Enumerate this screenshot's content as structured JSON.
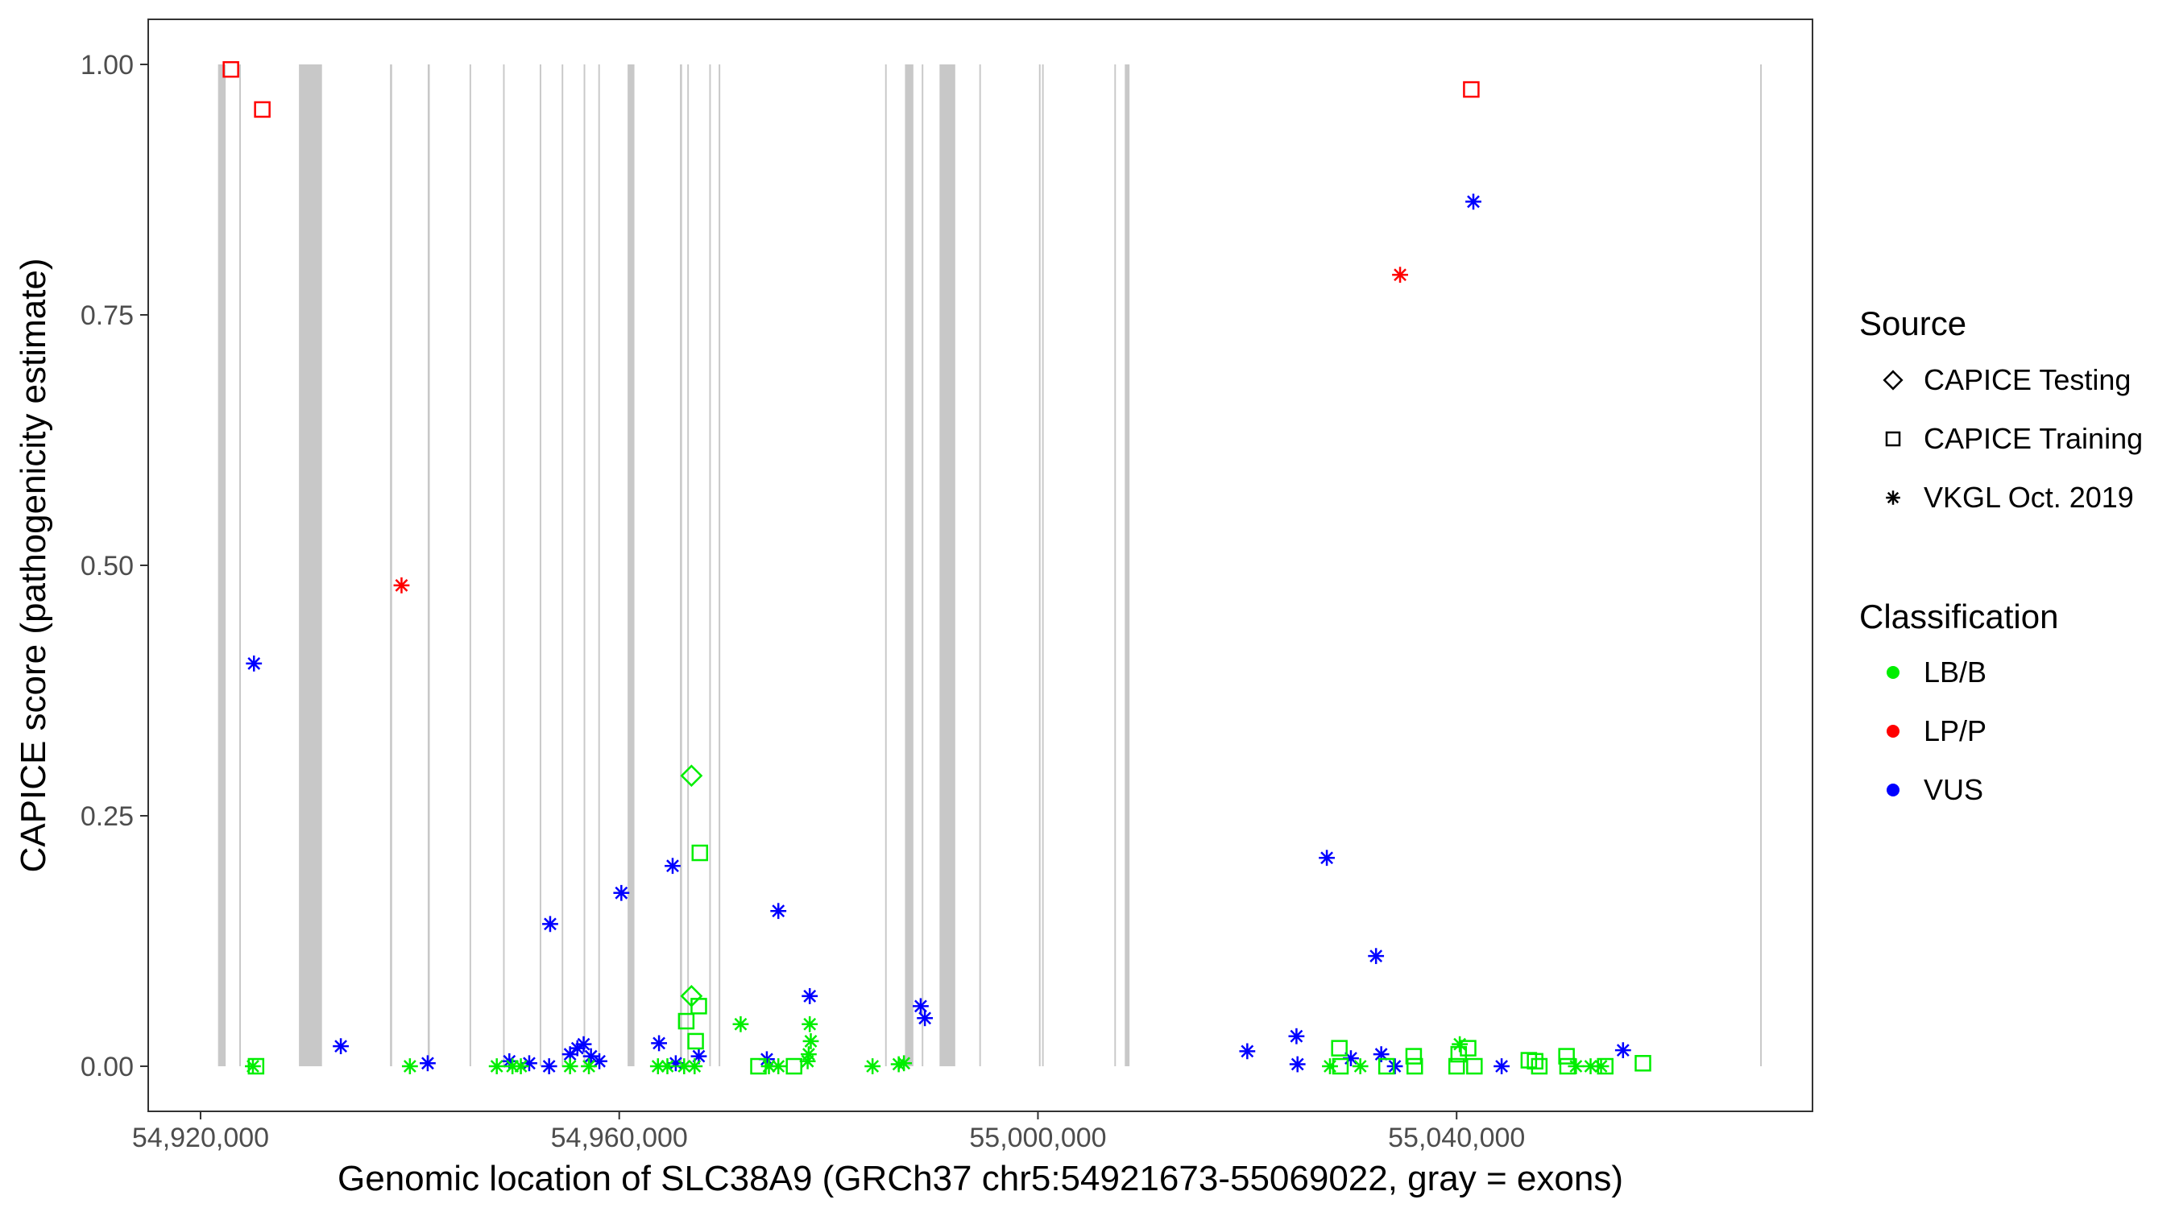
{
  "chart_data": {
    "type": "scatter",
    "xlabel": "Genomic location of SLC38A9 (GRCh37 chr5:54921673-55069022, gray = exons)",
    "ylabel": "CAPICE score (pathogenicity estimate)",
    "xlim": [
      54915000,
      55074000
    ],
    "ylim": [
      -0.045,
      1.045
    ],
    "x_ticks": [
      {
        "value": 54920000,
        "label": "54,920,000"
      },
      {
        "value": 54960000,
        "label": "54,960,000"
      },
      {
        "value": 55000000,
        "label": "55,000,000"
      },
      {
        "value": 55040000,
        "label": "55,040,000"
      }
    ],
    "y_ticks": [
      {
        "value": 0.0,
        "label": "0.00"
      },
      {
        "value": 0.25,
        "label": "0.25"
      },
      {
        "value": 0.5,
        "label": "0.50"
      },
      {
        "value": 0.75,
        "label": "0.75"
      },
      {
        "value": 1.0,
        "label": "1.00"
      }
    ],
    "grid": false,
    "exons": [
      [
        54921673,
        54922400
      ],
      [
        54923700,
        54923850
      ],
      [
        54929400,
        54931600
      ],
      [
        54938100,
        54938300
      ],
      [
        54941700,
        54941900
      ],
      [
        54945700,
        54945850
      ],
      [
        54948900,
        54949050
      ],
      [
        54952400,
        54952550
      ],
      [
        54954500,
        54954650
      ],
      [
        54956600,
        54956750
      ],
      [
        54958000,
        54958150
      ],
      [
        54960800,
        54961450
      ],
      [
        54965800,
        54966000
      ],
      [
        54966500,
        54966650
      ],
      [
        54968600,
        54968750
      ],
      [
        54969500,
        54969650
      ],
      [
        54985400,
        54985550
      ],
      [
        54987300,
        54988100
      ],
      [
        54988900,
        54989050
      ],
      [
        54990600,
        54992100
      ],
      [
        54994400,
        54994550
      ],
      [
        55000100,
        55000250
      ],
      [
        55000400,
        55000550
      ],
      [
        55007300,
        55007450
      ],
      [
        55008300,
        55008750
      ],
      [
        55069000,
        55069150
      ]
    ],
    "legend_placement": "right",
    "legend": {
      "source_title": "Source",
      "source_entries": [
        {
          "label": "CAPICE Testing",
          "shape": "diamond"
        },
        {
          "label": "CAPICE Training",
          "shape": "square"
        },
        {
          "label": "VKGL Oct. 2019",
          "shape": "asterisk"
        }
      ],
      "classification_title": "Classification",
      "classification_entries": [
        {
          "label": "LB/B",
          "color": "#00ee00"
        },
        {
          "label": "LP/P",
          "color": "#ff0000"
        },
        {
          "label": "VUS",
          "color": "#0000ff"
        }
      ]
    },
    "colors": {
      "LB/B": "#00ee00",
      "LP/P": "#ff0000",
      "VUS": "#0000ff"
    },
    "points": [
      {
        "x": 54922900,
        "y": 0.995,
        "source": "CAPICE Training",
        "cls": "LP/P"
      },
      {
        "x": 54925900,
        "y": 0.955,
        "source": "CAPICE Training",
        "cls": "LP/P"
      },
      {
        "x": 54939200,
        "y": 0.48,
        "source": "VKGL Oct. 2019",
        "cls": "LP/P"
      },
      {
        "x": 55034600,
        "y": 0.79,
        "source": "VKGL Oct. 2019",
        "cls": "LP/P"
      },
      {
        "x": 55041400,
        "y": 0.975,
        "source": "CAPICE Training",
        "cls": "LP/P"
      },
      {
        "x": 54925100,
        "y": 0.402,
        "source": "VKGL Oct. 2019",
        "cls": "VUS"
      },
      {
        "x": 54933400,
        "y": 0.02,
        "source": "VKGL Oct. 2019",
        "cls": "VUS"
      },
      {
        "x": 54941700,
        "y": 0.003,
        "source": "VKGL Oct. 2019",
        "cls": "VUS"
      },
      {
        "x": 54949500,
        "y": 0.005,
        "source": "VKGL Oct. 2019",
        "cls": "VUS"
      },
      {
        "x": 54951400,
        "y": 0.003,
        "source": "VKGL Oct. 2019",
        "cls": "VUS"
      },
      {
        "x": 54953300,
        "y": 0.0,
        "source": "VKGL Oct. 2019",
        "cls": "VUS"
      },
      {
        "x": 54953400,
        "y": 0.142,
        "source": "VKGL Oct. 2019",
        "cls": "VUS"
      },
      {
        "x": 54955300,
        "y": 0.012,
        "source": "VKGL Oct. 2019",
        "cls": "VUS"
      },
      {
        "x": 54956000,
        "y": 0.018,
        "source": "VKGL Oct. 2019",
        "cls": "VUS"
      },
      {
        "x": 54956600,
        "y": 0.022,
        "source": "VKGL Oct. 2019",
        "cls": "VUS"
      },
      {
        "x": 54957300,
        "y": 0.01,
        "source": "VKGL Oct. 2019",
        "cls": "VUS"
      },
      {
        "x": 54958100,
        "y": 0.005,
        "source": "VKGL Oct. 2019",
        "cls": "VUS"
      },
      {
        "x": 54960200,
        "y": 0.173,
        "source": "VKGL Oct. 2019",
        "cls": "VUS"
      },
      {
        "x": 54963800,
        "y": 0.023,
        "source": "VKGL Oct. 2019",
        "cls": "VUS"
      },
      {
        "x": 54965100,
        "y": 0.2,
        "source": "VKGL Oct. 2019",
        "cls": "VUS"
      },
      {
        "x": 54965400,
        "y": 0.003,
        "source": "VKGL Oct. 2019",
        "cls": "VUS"
      },
      {
        "x": 54967600,
        "y": 0.01,
        "source": "VKGL Oct. 2019",
        "cls": "VUS"
      },
      {
        "x": 54974100,
        "y": 0.007,
        "source": "VKGL Oct. 2019",
        "cls": "VUS"
      },
      {
        "x": 54975200,
        "y": 0.155,
        "source": "VKGL Oct. 2019",
        "cls": "VUS"
      },
      {
        "x": 54978200,
        "y": 0.07,
        "source": "VKGL Oct. 2019",
        "cls": "VUS"
      },
      {
        "x": 54988800,
        "y": 0.06,
        "source": "VKGL Oct. 2019",
        "cls": "VUS"
      },
      {
        "x": 54989200,
        "y": 0.048,
        "source": "VKGL Oct. 2019",
        "cls": "VUS"
      },
      {
        "x": 55020000,
        "y": 0.015,
        "source": "VKGL Oct. 2019",
        "cls": "VUS"
      },
      {
        "x": 55024700,
        "y": 0.03,
        "source": "VKGL Oct. 2019",
        "cls": "VUS"
      },
      {
        "x": 55024800,
        "y": 0.002,
        "source": "VKGL Oct. 2019",
        "cls": "VUS"
      },
      {
        "x": 55027600,
        "y": 0.208,
        "source": "VKGL Oct. 2019",
        "cls": "VUS"
      },
      {
        "x": 55029900,
        "y": 0.008,
        "source": "VKGL Oct. 2019",
        "cls": "VUS"
      },
      {
        "x": 55032300,
        "y": 0.11,
        "source": "VKGL Oct. 2019",
        "cls": "VUS"
      },
      {
        "x": 55032800,
        "y": 0.012,
        "source": "VKGL Oct. 2019",
        "cls": "VUS"
      },
      {
        "x": 55034100,
        "y": 0.0,
        "source": "VKGL Oct. 2019",
        "cls": "VUS"
      },
      {
        "x": 55041600,
        "y": 0.863,
        "source": "VKGL Oct. 2019",
        "cls": "VUS"
      },
      {
        "x": 55044300,
        "y": 0.0,
        "source": "VKGL Oct. 2019",
        "cls": "VUS"
      },
      {
        "x": 55055900,
        "y": 0.016,
        "source": "VKGL Oct. 2019",
        "cls": "VUS"
      },
      {
        "x": 54925000,
        "y": 0.0,
        "source": "VKGL Oct. 2019",
        "cls": "LB/B"
      },
      {
        "x": 54925300,
        "y": 0.0,
        "source": "CAPICE Training",
        "cls": "LB/B"
      },
      {
        "x": 54940000,
        "y": 0.0,
        "source": "VKGL Oct. 2019",
        "cls": "LB/B"
      },
      {
        "x": 54948300,
        "y": 0.0,
        "source": "VKGL Oct. 2019",
        "cls": "LB/B"
      },
      {
        "x": 54949800,
        "y": 0.0,
        "source": "VKGL Oct. 2019",
        "cls": "LB/B"
      },
      {
        "x": 54950600,
        "y": 0.0,
        "source": "VKGL Oct. 2019",
        "cls": "LB/B"
      },
      {
        "x": 54955300,
        "y": 0.0,
        "source": "VKGL Oct. 2019",
        "cls": "LB/B"
      },
      {
        "x": 54957100,
        "y": 0.0,
        "source": "VKGL Oct. 2019",
        "cls": "LB/B"
      },
      {
        "x": 54963700,
        "y": 0.0,
        "source": "VKGL Oct. 2019",
        "cls": "LB/B"
      },
      {
        "x": 54964600,
        "y": 0.0,
        "source": "VKGL Oct. 2019",
        "cls": "LB/B"
      },
      {
        "x": 54966200,
        "y": 0.0,
        "source": "VKGL Oct. 2019",
        "cls": "LB/B"
      },
      {
        "x": 54967200,
        "y": 0.0,
        "source": "VKGL Oct. 2019",
        "cls": "LB/B"
      },
      {
        "x": 54971600,
        "y": 0.042,
        "source": "VKGL Oct. 2019",
        "cls": "LB/B"
      },
      {
        "x": 54974300,
        "y": 0.0,
        "source": "VKGL Oct. 2019",
        "cls": "LB/B"
      },
      {
        "x": 54975200,
        "y": 0.0,
        "source": "VKGL Oct. 2019",
        "cls": "LB/B"
      },
      {
        "x": 54978200,
        "y": 0.042,
        "source": "VKGL Oct. 2019",
        "cls": "LB/B"
      },
      {
        "x": 54978300,
        "y": 0.025,
        "source": "VKGL Oct. 2019",
        "cls": "LB/B"
      },
      {
        "x": 54978100,
        "y": 0.012,
        "source": "VKGL Oct. 2019",
        "cls": "LB/B"
      },
      {
        "x": 54978000,
        "y": 0.005,
        "source": "VKGL Oct. 2019",
        "cls": "LB/B"
      },
      {
        "x": 54984200,
        "y": 0.0,
        "source": "VKGL Oct. 2019",
        "cls": "LB/B"
      },
      {
        "x": 54986700,
        "y": 0.002,
        "source": "VKGL Oct. 2019",
        "cls": "LB/B"
      },
      {
        "x": 54987200,
        "y": 0.003,
        "source": "VKGL Oct. 2019",
        "cls": "LB/B"
      },
      {
        "x": 55027900,
        "y": 0.0,
        "source": "VKGL Oct. 2019",
        "cls": "LB/B"
      },
      {
        "x": 55030800,
        "y": 0.0,
        "source": "VKGL Oct. 2019",
        "cls": "LB/B"
      },
      {
        "x": 55040300,
        "y": 0.022,
        "source": "VKGL Oct. 2019",
        "cls": "LB/B"
      },
      {
        "x": 55051400,
        "y": 0.0,
        "source": "VKGL Oct. 2019",
        "cls": "LB/B"
      },
      {
        "x": 55052800,
        "y": 0.0,
        "source": "VKGL Oct. 2019",
        "cls": "LB/B"
      },
      {
        "x": 55053800,
        "y": 0.0,
        "source": "VKGL Oct. 2019",
        "cls": "LB/B"
      },
      {
        "x": 54966900,
        "y": 0.29,
        "source": "CAPICE Testing",
        "cls": "LB/B"
      },
      {
        "x": 54966900,
        "y": 0.07,
        "source": "CAPICE Testing",
        "cls": "LB/B"
      },
      {
        "x": 54967700,
        "y": 0.213,
        "source": "CAPICE Training",
        "cls": "LB/B"
      },
      {
        "x": 54966400,
        "y": 0.045,
        "source": "CAPICE Training",
        "cls": "LB/B"
      },
      {
        "x": 54967600,
        "y": 0.06,
        "source": "CAPICE Training",
        "cls": "LB/B"
      },
      {
        "x": 54967300,
        "y": 0.025,
        "source": "CAPICE Training",
        "cls": "LB/B"
      },
      {
        "x": 54973300,
        "y": 0.0,
        "source": "CAPICE Training",
        "cls": "LB/B"
      },
      {
        "x": 54976700,
        "y": 0.0,
        "source": "CAPICE Training",
        "cls": "LB/B"
      },
      {
        "x": 55028800,
        "y": 0.018,
        "source": "CAPICE Training",
        "cls": "LB/B"
      },
      {
        "x": 55028900,
        "y": 0.0,
        "source": "CAPICE Training",
        "cls": "LB/B"
      },
      {
        "x": 55033300,
        "y": 0.0,
        "source": "CAPICE Training",
        "cls": "LB/B"
      },
      {
        "x": 55035900,
        "y": 0.01,
        "source": "CAPICE Training",
        "cls": "LB/B"
      },
      {
        "x": 55036000,
        "y": 0.0,
        "source": "CAPICE Training",
        "cls": "LB/B"
      },
      {
        "x": 55040000,
        "y": 0.0,
        "source": "CAPICE Training",
        "cls": "LB/B"
      },
      {
        "x": 55040200,
        "y": 0.012,
        "source": "CAPICE Training",
        "cls": "LB/B"
      },
      {
        "x": 55041100,
        "y": 0.018,
        "source": "CAPICE Training",
        "cls": "LB/B"
      },
      {
        "x": 55041700,
        "y": 0.0,
        "source": "CAPICE Training",
        "cls": "LB/B"
      },
      {
        "x": 55046900,
        "y": 0.006,
        "source": "CAPICE Training",
        "cls": "LB/B"
      },
      {
        "x": 55047500,
        "y": 0.005,
        "source": "CAPICE Training",
        "cls": "LB/B"
      },
      {
        "x": 55047900,
        "y": 0.0,
        "source": "CAPICE Training",
        "cls": "LB/B"
      },
      {
        "x": 55050500,
        "y": 0.01,
        "source": "CAPICE Training",
        "cls": "LB/B"
      },
      {
        "x": 55050600,
        "y": 0.0,
        "source": "CAPICE Training",
        "cls": "LB/B"
      },
      {
        "x": 55054200,
        "y": 0.0,
        "source": "CAPICE Training",
        "cls": "LB/B"
      },
      {
        "x": 55057800,
        "y": 0.003,
        "source": "CAPICE Training",
        "cls": "LB/B"
      }
    ]
  }
}
